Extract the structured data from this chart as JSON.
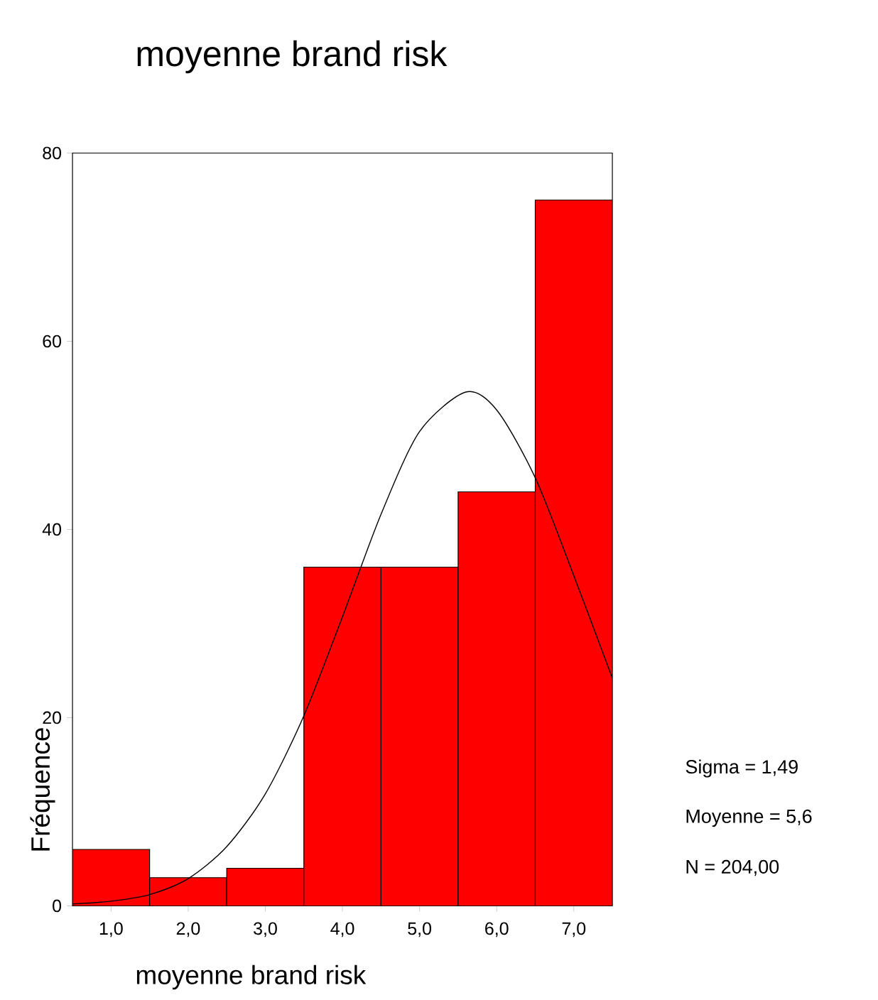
{
  "chart_data": {
    "type": "histogram",
    "title": "moyenne brand risk",
    "xlabel": "moyenne brand risk",
    "ylabel": "Fréquence",
    "bins": [
      0.5,
      1.5,
      2.5,
      3.5,
      4.5,
      5.5,
      6.5,
      7.5
    ],
    "values": [
      6,
      3,
      4,
      36,
      36,
      44,
      75
    ],
    "color": "#ff0000",
    "series": [
      {
        "type": "line",
        "color": "#000000",
        "x": [
          0.5,
          1.0,
          1.5,
          2.0,
          2.5,
          3.0,
          3.5,
          4.0,
          4.5,
          5.0,
          5.6,
          6.0,
          6.5,
          7.0,
          7.5
        ],
        "values": [
          0.2,
          0.5,
          1.2,
          2.9,
          6.3,
          11.9,
          20.2,
          30.7,
          41.6,
          50.4,
          54.6,
          52.7,
          45.5,
          35.1,
          24.2
        ]
      }
    ],
    "xlim": [
      0.5,
      7.5
    ],
    "xticks": [
      {
        "value": 1,
        "label": "1,0"
      },
      {
        "value": 2,
        "label": "2,0"
      },
      {
        "value": 3,
        "label": "3,0"
      },
      {
        "value": 4,
        "label": "4,0"
      },
      {
        "value": 5,
        "label": "5,0"
      },
      {
        "value": 6,
        "label": "6,0"
      },
      {
        "value": 7,
        "label": "7,0"
      }
    ],
    "ylim": [
      0,
      80
    ],
    "yticks": [
      0,
      20,
      40,
      60,
      80
    ],
    "annotations": [
      "Sigma = 1,49",
      "Moyenne = 5,6",
      "N = 204,00"
    ]
  }
}
